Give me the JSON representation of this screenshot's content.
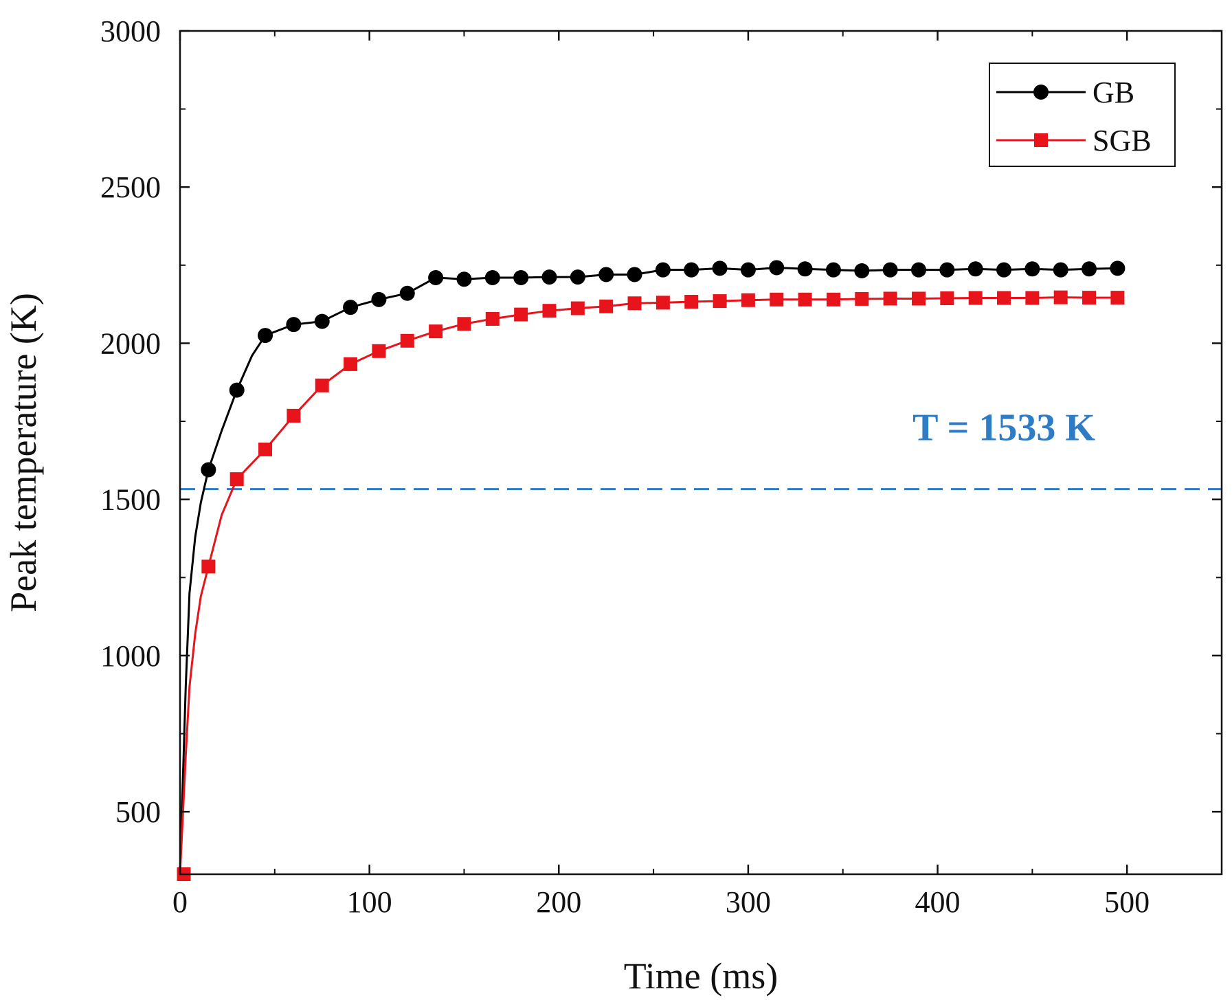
{
  "chart_data": {
    "type": "line",
    "title": "",
    "xlabel": "Time (ms)",
    "ylabel": "Peak temperature (K)",
    "xlim": [
      0,
      550
    ],
    "ylim": [
      300,
      3000
    ],
    "xticks": [
      0,
      100,
      200,
      300,
      400,
      500
    ],
    "yticks": [
      500,
      1000,
      1500,
      2000,
      2500,
      3000
    ],
    "xtick_labels": [
      "0",
      "100",
      "200",
      "300",
      "400",
      "500"
    ],
    "ytick_labels": [
      "500",
      "1000",
      "1500",
      "2000",
      "2500",
      "3000"
    ],
    "grid": false,
    "legend_position": "top-right",
    "series": [
      {
        "name": "GB",
        "color": "#000000",
        "marker": "circle",
        "curve": [
          [
            0,
            300
          ],
          [
            3,
            900
          ],
          [
            5,
            1200
          ],
          [
            8,
            1380
          ],
          [
            11,
            1490
          ],
          [
            15,
            1595
          ],
          [
            22,
            1720
          ],
          [
            30,
            1850
          ],
          [
            38,
            1960
          ],
          [
            45,
            2025
          ],
          [
            60,
            2060
          ],
          [
            75,
            2070
          ],
          [
            90,
            2115
          ],
          [
            105,
            2140
          ],
          [
            120,
            2160
          ],
          [
            135,
            2210
          ],
          [
            150,
            2205
          ],
          [
            165,
            2210
          ],
          [
            180,
            2210
          ],
          [
            195,
            2212
          ],
          [
            210,
            2212
          ],
          [
            225,
            2220
          ],
          [
            240,
            2220
          ],
          [
            255,
            2235
          ],
          [
            270,
            2235
          ],
          [
            285,
            2240
          ],
          [
            300,
            2235
          ],
          [
            315,
            2242
          ],
          [
            330,
            2238
          ],
          [
            345,
            2235
          ],
          [
            360,
            2232
          ],
          [
            375,
            2235
          ],
          [
            390,
            2235
          ],
          [
            405,
            2235
          ],
          [
            420,
            2238
          ],
          [
            435,
            2235
          ],
          [
            450,
            2238
          ],
          [
            465,
            2235
          ],
          [
            480,
            2238
          ],
          [
            495,
            2240
          ]
        ],
        "points": [
          [
            15,
            1595
          ],
          [
            30,
            1850
          ],
          [
            45,
            2025
          ],
          [
            60,
            2060
          ],
          [
            75,
            2070
          ],
          [
            90,
            2115
          ],
          [
            105,
            2140
          ],
          [
            120,
            2160
          ],
          [
            135,
            2210
          ],
          [
            150,
            2205
          ],
          [
            165,
            2210
          ],
          [
            180,
            2210
          ],
          [
            195,
            2212
          ],
          [
            210,
            2212
          ],
          [
            225,
            2220
          ],
          [
            240,
            2220
          ],
          [
            255,
            2235
          ],
          [
            270,
            2235
          ],
          [
            285,
            2240
          ],
          [
            300,
            2235
          ],
          [
            315,
            2242
          ],
          [
            330,
            2238
          ],
          [
            345,
            2235
          ],
          [
            360,
            2232
          ],
          [
            375,
            2235
          ],
          [
            390,
            2235
          ],
          [
            405,
            2235
          ],
          [
            420,
            2238
          ],
          [
            435,
            2235
          ],
          [
            450,
            2238
          ],
          [
            465,
            2235
          ],
          [
            480,
            2238
          ],
          [
            495,
            2240
          ]
        ]
      },
      {
        "name": "SGB",
        "color": "#e8141b",
        "marker": "square",
        "curve": [
          [
            0,
            300
          ],
          [
            3,
            680
          ],
          [
            5,
            900
          ],
          [
            8,
            1070
          ],
          [
            11,
            1190
          ],
          [
            15,
            1285
          ],
          [
            22,
            1450
          ],
          [
            30,
            1565
          ],
          [
            45,
            1660
          ],
          [
            60,
            1768
          ],
          [
            75,
            1865
          ],
          [
            90,
            1933
          ],
          [
            105,
            1975
          ],
          [
            120,
            2008
          ],
          [
            135,
            2038
          ],
          [
            150,
            2062
          ],
          [
            165,
            2078
          ],
          [
            180,
            2092
          ],
          [
            195,
            2104
          ],
          [
            210,
            2112
          ],
          [
            225,
            2118
          ],
          [
            240,
            2128
          ],
          [
            255,
            2130
          ],
          [
            270,
            2133
          ],
          [
            285,
            2135
          ],
          [
            300,
            2138
          ],
          [
            315,
            2140
          ],
          [
            330,
            2140
          ],
          [
            345,
            2140
          ],
          [
            360,
            2142
          ],
          [
            375,
            2143
          ],
          [
            390,
            2143
          ],
          [
            405,
            2144
          ],
          [
            420,
            2145
          ],
          [
            435,
            2145
          ],
          [
            450,
            2145
          ],
          [
            465,
            2147
          ],
          [
            480,
            2146
          ],
          [
            495,
            2146
          ]
        ],
        "points": [
          [
            2,
            300
          ],
          [
            15,
            1285
          ],
          [
            30,
            1565
          ],
          [
            45,
            1660
          ],
          [
            60,
            1768
          ],
          [
            75,
            1865
          ],
          [
            90,
            1933
          ],
          [
            105,
            1975
          ],
          [
            120,
            2008
          ],
          [
            135,
            2038
          ],
          [
            150,
            2062
          ],
          [
            165,
            2078
          ],
          [
            180,
            2092
          ],
          [
            195,
            2104
          ],
          [
            210,
            2112
          ],
          [
            225,
            2118
          ],
          [
            240,
            2128
          ],
          [
            255,
            2130
          ],
          [
            270,
            2133
          ],
          [
            285,
            2135
          ],
          [
            300,
            2138
          ],
          [
            315,
            2140
          ],
          [
            330,
            2140
          ],
          [
            345,
            2140
          ],
          [
            360,
            2142
          ],
          [
            375,
            2143
          ],
          [
            390,
            2143
          ],
          [
            405,
            2144
          ],
          [
            420,
            2145
          ],
          [
            435,
            2145
          ],
          [
            450,
            2145
          ],
          [
            465,
            2147
          ],
          [
            480,
            2146
          ],
          [
            495,
            2146
          ]
        ]
      }
    ],
    "reference_line": {
      "orientation": "horizontal",
      "value": 1533,
      "style": "dashed",
      "color": "#2f7cc6",
      "label": "T = 1533 K"
    }
  }
}
